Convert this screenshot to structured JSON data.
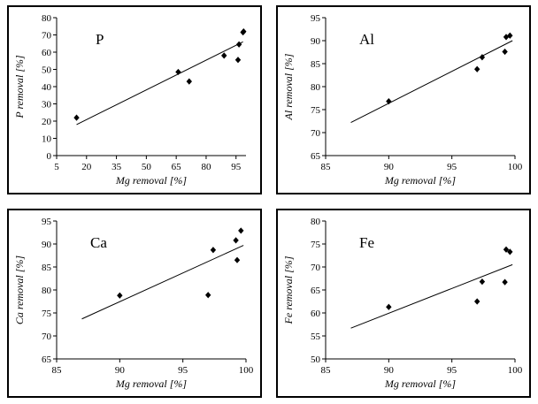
{
  "chart_data": [
    {
      "type": "scatter",
      "title": "P",
      "xlabel": "Mg removal [%]",
      "ylabel": "P removal [%]",
      "xlim": [
        5,
        100
      ],
      "ylim": [
        0,
        80
      ],
      "xticks": [
        5,
        20,
        35,
        50,
        65,
        80,
        95
      ],
      "yticks": [
        0,
        10,
        20,
        30,
        40,
        50,
        60,
        70,
        80
      ],
      "x": [
        15.0,
        66.0,
        71.5,
        89.0,
        96.0,
        96.5,
        98.5,
        98.8
      ],
      "y": [
        22.0,
        48.5,
        43.0,
        58.0,
        55.5,
        64.5,
        71.5,
        72.0
      ],
      "trendline": {
        "x": [
          15.0,
          98.5
        ],
        "y": [
          18.0,
          66.0
        ]
      }
    },
    {
      "type": "scatter",
      "title": "Al",
      "xlabel": "Mg removal [%]",
      "ylabel": "Al removal [%]",
      "xlim": [
        85,
        100
      ],
      "ylim": [
        65,
        95
      ],
      "xticks": [
        85,
        90,
        95,
        100
      ],
      "yticks": [
        65,
        70,
        75,
        80,
        85,
        90,
        95
      ],
      "x": [
        90.0,
        97.0,
        97.4,
        99.2,
        99.3,
        99.6
      ],
      "y": [
        76.8,
        83.8,
        86.4,
        87.6,
        90.8,
        91.1
      ],
      "trendline": {
        "x": [
          87.0,
          99.8
        ],
        "y": [
          72.2,
          90.0
        ]
      }
    },
    {
      "type": "scatter",
      "title": "Ca",
      "xlabel": "Mg removal [%]",
      "ylabel": "Ca removal [%]",
      "xlim": [
        85,
        100
      ],
      "ylim": [
        65,
        95
      ],
      "xticks": [
        85,
        90,
        95,
        100
      ],
      "yticks": [
        65,
        70,
        75,
        80,
        85,
        90,
        95
      ],
      "x": [
        90.0,
        97.0,
        97.4,
        99.2,
        99.3,
        99.6
      ],
      "y": [
        78.8,
        78.9,
        88.7,
        90.8,
        86.5,
        92.9
      ],
      "trendline": {
        "x": [
          87.0,
          99.8
        ],
        "y": [
          73.7,
          89.7
        ]
      }
    },
    {
      "type": "scatter",
      "title": "Fe",
      "xlabel": "Mg removal [%]",
      "ylabel": "Fe removal [%]",
      "xlim": [
        85,
        100
      ],
      "ylim": [
        50,
        80
      ],
      "xticks": [
        85,
        90,
        95,
        100
      ],
      "yticks": [
        50,
        55,
        60,
        65,
        70,
        75,
        80
      ],
      "x": [
        90.0,
        97.0,
        97.4,
        99.2,
        99.3,
        99.6
      ],
      "y": [
        61.3,
        62.5,
        66.8,
        66.7,
        73.8,
        73.3
      ],
      "trendline": {
        "x": [
          87.0,
          99.8
        ],
        "y": [
          56.7,
          70.5
        ]
      }
    }
  ]
}
